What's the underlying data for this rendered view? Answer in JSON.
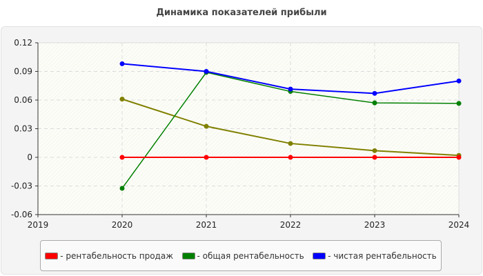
{
  "chart_data": {
    "type": "line",
    "title": "Динамика показателей прибыли",
    "xlabel": "",
    "ylabel": "",
    "x": [
      2020,
      2021,
      2022,
      2023,
      2024
    ],
    "xlim": [
      2019,
      2024
    ],
    "ylim": [
      -0.06,
      0.12
    ],
    "xticks": [
      "2019",
      "2020",
      "2021",
      "2022",
      "2023",
      "2024"
    ],
    "yticks": [
      "0.12",
      "0.09",
      "0.06",
      "0.03",
      "0",
      "-0.03",
      "-0.06"
    ],
    "grid": true,
    "legend_position": "bottom",
    "series": [
      {
        "name": "- рентабельность продаж",
        "color": "#ff0000",
        "values": [
          0,
          0,
          0,
          0,
          0
        ]
      },
      {
        "name": "- общая рентабельность",
        "color": "#008000",
        "values": [
          -0.0325,
          0.089,
          0.069,
          0.057,
          0.0565
        ]
      },
      {
        "name": "- чистая рентабельность",
        "color": "#0000ff",
        "values": [
          0.098,
          0.09,
          0.0715,
          0.067,
          0.08
        ]
      },
      {
        "color": "#808000",
        "values": [
          0.061,
          0.0325,
          0.0145,
          0.007,
          0.002
        ]
      }
    ]
  }
}
